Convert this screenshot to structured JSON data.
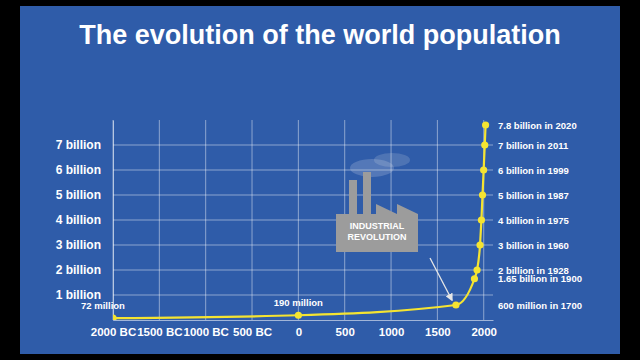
{
  "chart_data": {
    "type": "line",
    "title": "The evolution of the world population",
    "x": [
      -2000,
      0,
      1700,
      1900,
      1928,
      1960,
      1975,
      1987,
      1999,
      2011,
      2020
    ],
    "values": [
      0.072,
      0.19,
      0.6,
      1.65,
      2,
      3,
      4,
      5,
      6,
      7,
      7.8
    ],
    "value_labels": [
      "72 million",
      "190 million",
      "600 million in 1700",
      "1.65 billion in 1900",
      "2 billion in 1928",
      "3 billion in 1960",
      "4 billion in 1975",
      "5 billion in 1987",
      "6 billion in 1999",
      "7 billion in 2011",
      "7.8 billion in 2020"
    ],
    "data_labels": true,
    "color": "#f5e431",
    "marker": "circle",
    "xlim": [
      -2000,
      2100
    ],
    "xticks": [
      {
        "value": -2000,
        "label": "2000 BC"
      },
      {
        "value": -1500,
        "label": "1500 BC"
      },
      {
        "value": -1000,
        "label": "1000 BC"
      },
      {
        "value": -500,
        "label": "500 BC"
      },
      0,
      500,
      1000,
      1500,
      2000
    ],
    "ylim": [
      0,
      8
    ],
    "yticks": [
      {
        "value": 1,
        "label": "1 billion"
      },
      {
        "value": 2,
        "label": "2 billion"
      },
      {
        "value": 3,
        "label": "3 billion"
      },
      {
        "value": 4,
        "label": "4 billion"
      },
      {
        "value": 5,
        "label": "5 billion"
      },
      {
        "value": 6,
        "label": "6 billion"
      },
      {
        "value": 7,
        "label": "7 billion"
      }
    ],
    "grid": true,
    "annotations": [
      "INDUSTRIAL",
      "REVOLUTION"
    ]
  }
}
